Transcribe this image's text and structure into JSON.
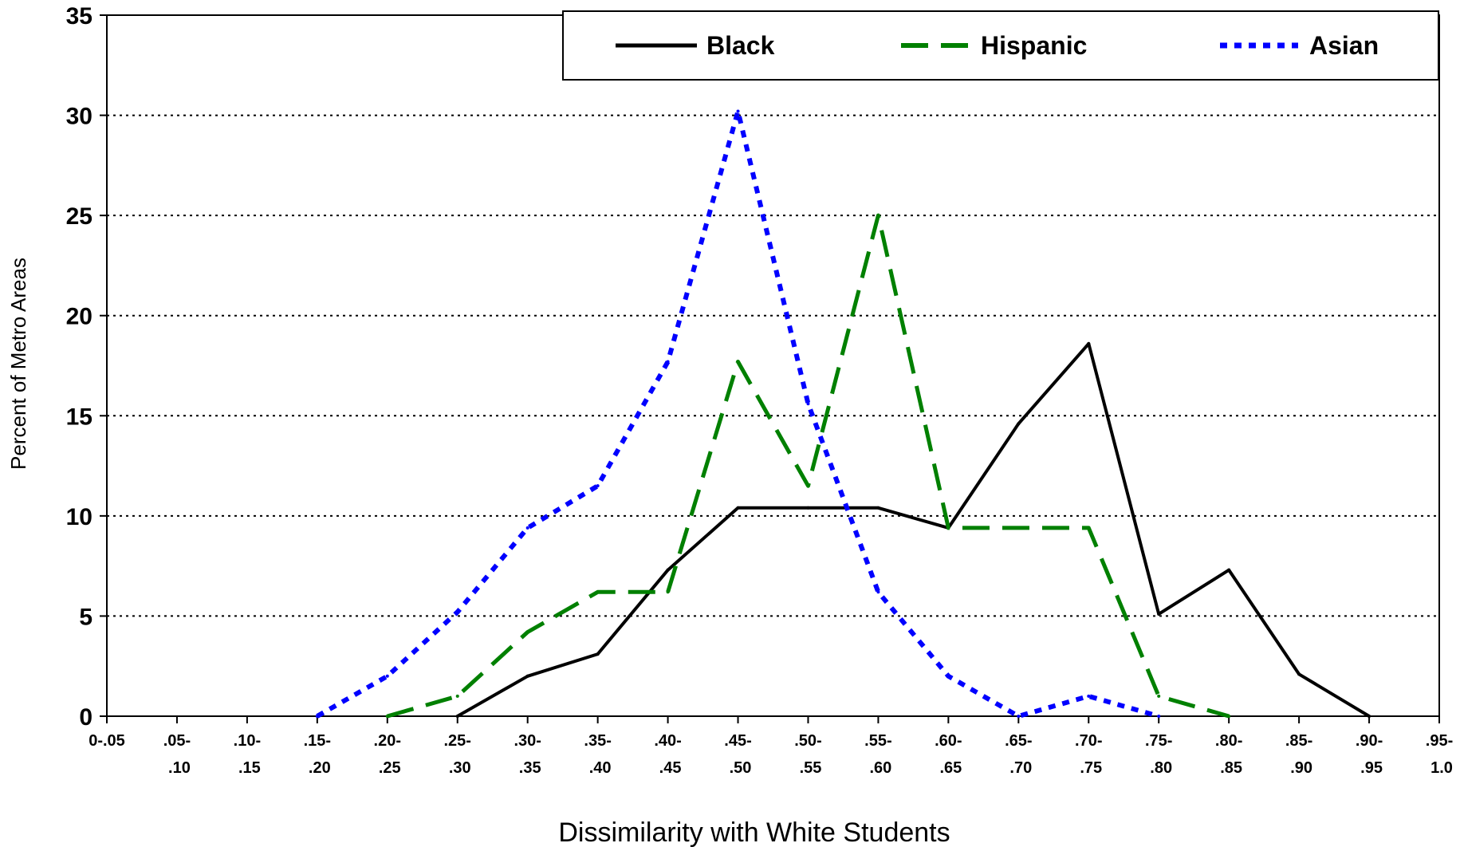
{
  "chart_data": {
    "type": "line",
    "title": "",
    "xlabel": "Dissimilarity with White Students",
    "ylabel": "Percent of Metro Areas",
    "ylim": [
      0,
      35
    ],
    "yticks": [
      0,
      5,
      10,
      15,
      20,
      25,
      30,
      35
    ],
    "grid": "horizontal dotted",
    "legend_position": "top-right",
    "categories": [
      [
        "0-.05",
        ""
      ],
      [
        ".05-",
        ".10"
      ],
      [
        ".10-",
        ".15"
      ],
      [
        ".15-",
        ".20"
      ],
      [
        ".20-",
        ".25"
      ],
      [
        ".25-",
        ".30"
      ],
      [
        ".30-",
        ".35"
      ],
      [
        ".35-",
        ".40"
      ],
      [
        ".40-",
        ".45"
      ],
      [
        ".45-",
        ".50"
      ],
      [
        ".50-",
        ".55"
      ],
      [
        ".55-",
        ".60"
      ],
      [
        ".60-",
        ".65"
      ],
      [
        ".65-",
        ".70"
      ],
      [
        ".70-",
        ".75"
      ],
      [
        ".75-",
        ".80"
      ],
      [
        ".80-",
        ".85"
      ],
      [
        ".85-",
        ".90"
      ],
      [
        ".90-",
        ".95"
      ],
      [
        ".95-",
        "1.0"
      ]
    ],
    "series": [
      {
        "name": "Black",
        "color": "#000000",
        "dash": "solid",
        "values": [
          null,
          null,
          null,
          null,
          null,
          0,
          2.0,
          3.1,
          7.3,
          10.4,
          10.4,
          10.4,
          9.4,
          14.6,
          18.6,
          5.1,
          7.3,
          2.1,
          0,
          null
        ]
      },
      {
        "name": "Hispanic",
        "color": "#008000",
        "dash": "long-dash",
        "values": [
          null,
          null,
          null,
          null,
          0,
          1.0,
          4.2,
          6.2,
          6.2,
          17.7,
          11.5,
          25.0,
          9.4,
          9.4,
          9.4,
          1.0,
          0,
          null,
          null,
          null
        ]
      },
      {
        "name": "Asian",
        "color": "#0000ff",
        "dash": "dotted",
        "values": [
          null,
          null,
          null,
          0,
          2.0,
          5.2,
          9.4,
          11.5,
          17.7,
          30.2,
          15.6,
          6.2,
          2.0,
          0,
          1.0,
          0,
          null,
          null,
          null,
          null
        ]
      }
    ]
  }
}
